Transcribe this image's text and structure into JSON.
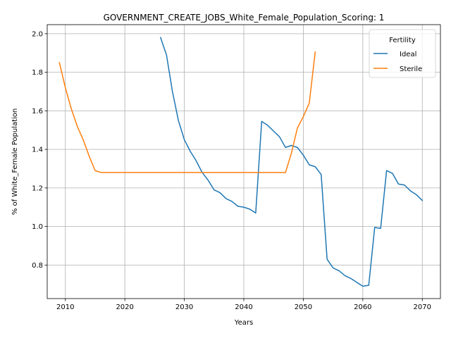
{
  "chart_data": {
    "type": "line",
    "title": "GOVERNMENT_CREATE_JOBS_White_Female_Population_Scoring: 1",
    "xlabel": "Years",
    "ylabel": "% of White_Female Population",
    "xlim": [
      2006.95,
      2073.05
    ],
    "ylim": [
      0.626,
      2.047
    ],
    "xticks": [
      2010,
      2020,
      2030,
      2040,
      2050,
      2060,
      2070
    ],
    "yticks": [
      0.8,
      1.0,
      1.2,
      1.4,
      1.6,
      1.8,
      2.0
    ],
    "xtick_labels": [
      "2010",
      "2020",
      "2030",
      "2040",
      "2050",
      "2060",
      "2070"
    ],
    "ytick_labels": [
      "0.8",
      "1.0",
      "1.2",
      "1.4",
      "1.6",
      "1.8",
      "2.0"
    ],
    "grid": true,
    "legend": {
      "title": "Fertility",
      "placement": "top-right"
    },
    "series": [
      {
        "name": "Ideal",
        "color": "#1f77b4",
        "x": [
          2026,
          2027,
          2028,
          2029,
          2030,
          2031,
          2032,
          2033,
          2034,
          2035,
          2036,
          2037,
          2038,
          2039,
          2040,
          2041,
          2042,
          2043,
          2044,
          2045,
          2046,
          2047,
          2048,
          2049,
          2050,
          2051,
          2052,
          2053,
          2054,
          2055,
          2056,
          2057,
          2058,
          2059,
          2060,
          2061,
          2062,
          2063,
          2064,
          2065,
          2066,
          2067,
          2068,
          2069,
          2070
        ],
        "y": [
          1.98,
          1.89,
          1.7,
          1.55,
          1.45,
          1.39,
          1.34,
          1.28,
          1.24,
          1.19,
          1.175,
          1.145,
          1.13,
          1.105,
          1.1,
          1.09,
          1.07,
          1.545,
          1.525,
          1.495,
          1.465,
          1.41,
          1.42,
          1.41,
          1.37,
          1.32,
          1.31,
          1.27,
          0.83,
          0.785,
          0.77,
          0.745,
          0.73,
          0.71,
          0.69,
          0.695,
          0.995,
          0.99,
          1.29,
          1.275,
          1.22,
          1.215,
          1.185,
          1.165,
          1.135
        ]
      },
      {
        "name": "Sterile",
        "color": "#ff7f0e",
        "x": [
          2009,
          2010,
          2011,
          2012,
          2013,
          2014,
          2015,
          2016,
          2017,
          2018,
          2019,
          2020,
          2021,
          2022,
          2023,
          2024,
          2025,
          2026,
          2027,
          2028,
          2029,
          2030,
          2031,
          2032,
          2033,
          2034,
          2035,
          2036,
          2037,
          2038,
          2039,
          2040,
          2041,
          2042,
          2043,
          2044,
          2045,
          2046,
          2047,
          2048,
          2049,
          2050,
          2051,
          2052
        ],
        "y": [
          1.85,
          1.72,
          1.61,
          1.52,
          1.45,
          1.365,
          1.29,
          1.28,
          1.28,
          1.28,
          1.28,
          1.28,
          1.28,
          1.28,
          1.28,
          1.28,
          1.28,
          1.28,
          1.28,
          1.28,
          1.28,
          1.28,
          1.28,
          1.28,
          1.28,
          1.28,
          1.28,
          1.28,
          1.28,
          1.28,
          1.28,
          1.28,
          1.28,
          1.28,
          1.28,
          1.28,
          1.28,
          1.28,
          1.28,
          1.38,
          1.51,
          1.57,
          1.64,
          1.905
        ]
      }
    ]
  }
}
